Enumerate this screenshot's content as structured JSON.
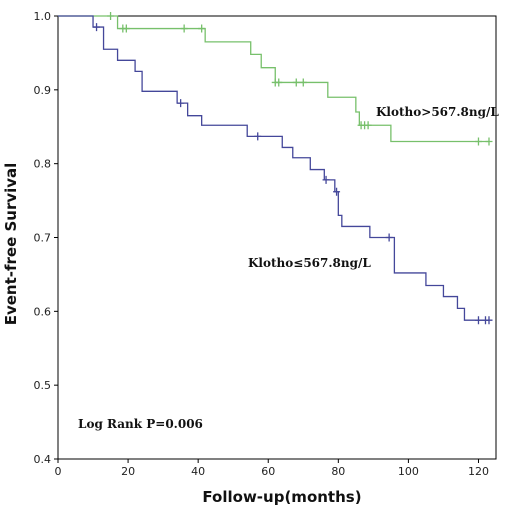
{
  "chart_data": {
    "type": "line",
    "title": "",
    "xlabel": "Follow-up(months)",
    "ylabel": "Event-free Survival",
    "xlim": [
      0,
      125
    ],
    "ylim": [
      0.4,
      1.0
    ],
    "x_ticks": [
      0,
      20,
      40,
      60,
      80,
      100,
      120
    ],
    "y_ticks": [
      0.4,
      0.5,
      0.6,
      0.7,
      0.8,
      0.9,
      1.0
    ],
    "x_tick_labels": [
      "0",
      "20",
      "40",
      "60",
      "80",
      "100",
      "120"
    ],
    "y_tick_labels": [
      "0.4",
      "0.5",
      "0.6",
      "0.7",
      "0.8",
      "0.9",
      "1.0"
    ],
    "grid": false,
    "annotation": "Log Rank P=0.006",
    "series": [
      {
        "name": "Klotho>567.8ng/L",
        "color": "#77c06b",
        "steps": [
          [
            0,
            1.0
          ],
          [
            17,
            0.983
          ],
          [
            42,
            0.965
          ],
          [
            55,
            0.948
          ],
          [
            58,
            0.93
          ],
          [
            62,
            0.91
          ],
          [
            77,
            0.89
          ],
          [
            85,
            0.87
          ],
          [
            86,
            0.852
          ],
          [
            95,
            0.83
          ],
          [
            123,
            0.83
          ]
        ],
        "censored": [
          [
            15,
            1.0
          ],
          [
            18.5,
            0.983
          ],
          [
            19.5,
            0.983
          ],
          [
            36,
            0.983
          ],
          [
            41,
            0.983
          ],
          [
            62,
            0.91
          ],
          [
            63,
            0.91
          ],
          [
            68,
            0.91
          ],
          [
            70,
            0.91
          ],
          [
            86.5,
            0.852
          ],
          [
            87.5,
            0.852
          ],
          [
            88.5,
            0.852
          ],
          [
            120,
            0.83
          ],
          [
            123,
            0.83
          ]
        ]
      },
      {
        "name": "Klotho≤567.8ng/L",
        "color": "#44479a",
        "steps": [
          [
            0,
            1.0
          ],
          [
            10,
            0.985
          ],
          [
            13,
            0.955
          ],
          [
            17,
            0.94
          ],
          [
            22,
            0.925
          ],
          [
            24,
            0.898
          ],
          [
            34,
            0.882
          ],
          [
            37,
            0.865
          ],
          [
            41,
            0.852
          ],
          [
            54,
            0.837
          ],
          [
            64,
            0.822
          ],
          [
            67,
            0.808
          ],
          [
            72,
            0.792
          ],
          [
            76,
            0.778
          ],
          [
            79,
            0.762
          ],
          [
            80,
            0.73
          ],
          [
            81,
            0.715
          ],
          [
            89,
            0.7
          ],
          [
            96,
            0.652
          ],
          [
            105,
            0.635
          ],
          [
            110,
            0.62
          ],
          [
            114,
            0.604
          ],
          [
            116,
            0.588
          ],
          [
            123,
            0.588
          ]
        ],
        "censored": [
          [
            11,
            0.985
          ],
          [
            35,
            0.882
          ],
          [
            57,
            0.837
          ],
          [
            76.5,
            0.778
          ],
          [
            79.5,
            0.762
          ],
          [
            94.5,
            0.7
          ],
          [
            120,
            0.588
          ],
          [
            122,
            0.588
          ],
          [
            123,
            0.588
          ]
        ]
      }
    ]
  }
}
